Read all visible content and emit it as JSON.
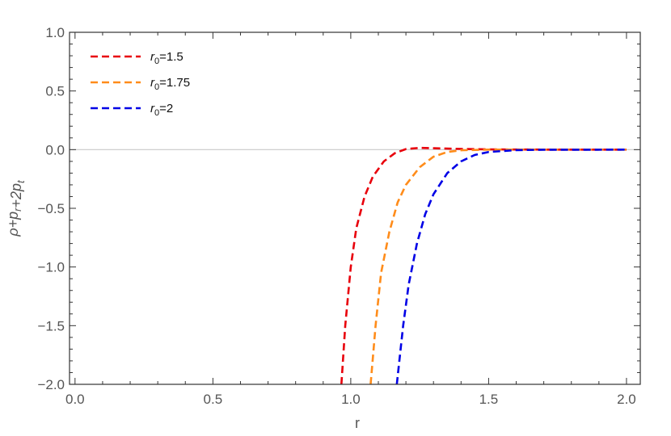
{
  "chart_data": {
    "type": "line",
    "title": "",
    "xlabel": "r",
    "ylabel": {
      "parts": [
        {
          "text": "ρ+p",
          "sub": "r"
        },
        {
          "text": "+2p",
          "sub": "t"
        }
      ]
    },
    "xlim": [
      -0.02,
      2.05
    ],
    "ylim": [
      -2.0,
      1.0
    ],
    "xticks": [
      0.0,
      0.5,
      1.0,
      1.5,
      2.0
    ],
    "xtick_labels": [
      "0.0",
      "0.5",
      "1.0",
      "1.5",
      "2.0"
    ],
    "yticks": [
      1.0,
      0.5,
      0.0,
      -0.5,
      -1.0,
      -1.5,
      -2.0
    ],
    "ytick_labels": [
      "1.0",
      "0.5",
      "0.0",
      "−0.5",
      "−1.0",
      "−1.5",
      "−2.0"
    ],
    "grid": false,
    "zero_line": true,
    "legend_position": "top-left",
    "series": [
      {
        "name": "r0=1.5",
        "legend_main": "r",
        "legend_sub": "0",
        "legend_rest": "=1.5",
        "color": "#e8000b",
        "dash": "dashed",
        "points": [
          [
            0.966,
            -2.0
          ],
          [
            0.98,
            -1.5
          ],
          [
            1.0,
            -1.0
          ],
          [
            1.02,
            -0.67
          ],
          [
            1.05,
            -0.4
          ],
          [
            1.08,
            -0.23
          ],
          [
            1.12,
            -0.1
          ],
          [
            1.16,
            -0.03
          ],
          [
            1.2,
            0.005
          ],
          [
            1.25,
            0.015
          ],
          [
            1.3,
            0.012
          ],
          [
            1.4,
            0.006
          ],
          [
            1.5,
            0.002
          ],
          [
            1.6,
            0.001
          ],
          [
            1.8,
            0.0
          ],
          [
            2.0,
            0.0
          ]
        ]
      },
      {
        "name": "r0=1.75",
        "legend_main": "r",
        "legend_sub": "0",
        "legend_rest": "=1.75",
        "color": "#ff8c1a",
        "dash": "dashed",
        "points": [
          [
            1.072,
            -2.0
          ],
          [
            1.09,
            -1.5
          ],
          [
            1.11,
            -1.05
          ],
          [
            1.14,
            -0.7
          ],
          [
            1.17,
            -0.45
          ],
          [
            1.2,
            -0.3
          ],
          [
            1.25,
            -0.15
          ],
          [
            1.3,
            -0.06
          ],
          [
            1.35,
            -0.02
          ],
          [
            1.4,
            -0.005
          ],
          [
            1.5,
            0.0
          ],
          [
            1.7,
            0.0
          ],
          [
            2.0,
            0.0
          ]
        ]
      },
      {
        "name": "r0=2",
        "legend_main": "r",
        "legend_sub": "0",
        "legend_rest": "=2",
        "color": "#0000e6",
        "dash": "dashed",
        "points": [
          [
            1.167,
            -2.0
          ],
          [
            1.19,
            -1.5
          ],
          [
            1.21,
            -1.15
          ],
          [
            1.24,
            -0.8
          ],
          [
            1.27,
            -0.55
          ],
          [
            1.3,
            -0.38
          ],
          [
            1.35,
            -0.2
          ],
          [
            1.4,
            -0.1
          ],
          [
            1.45,
            -0.045
          ],
          [
            1.5,
            -0.02
          ],
          [
            1.6,
            -0.004
          ],
          [
            1.7,
            -0.001
          ],
          [
            2.0,
            0.0
          ]
        ]
      }
    ]
  }
}
